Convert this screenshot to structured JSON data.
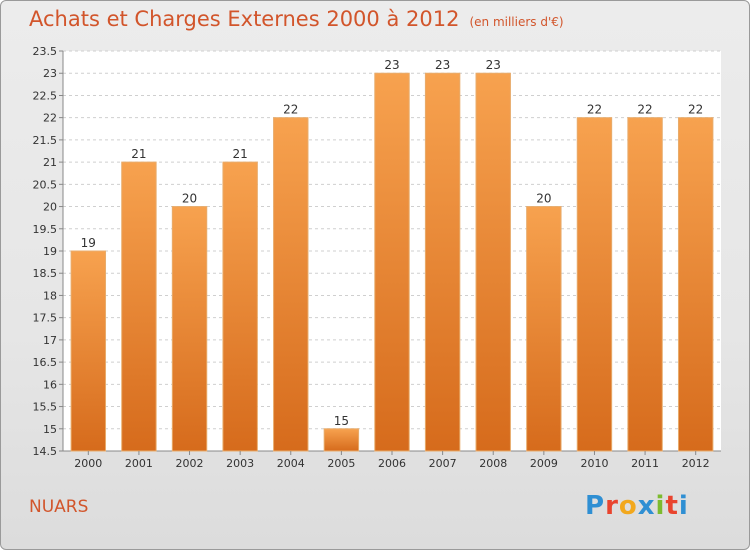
{
  "header": {
    "title": "Achats et Charges Externes 2000 à 2012",
    "subtitle": "(en milliers d'€)"
  },
  "footer": {
    "city": "NUARS",
    "logo_letters": [
      "P",
      "r",
      "o",
      "x",
      "i",
      "t",
      "i"
    ]
  },
  "colors": {
    "accent": "#d2552b",
    "bar_top": "#f7a24f",
    "bar_bottom": "#d66b1c",
    "logo": [
      "#2f8fd3",
      "#e9442e",
      "#f2a81d",
      "#2f8fd3",
      "#7dbb2f",
      "#e9442e",
      "#2f8fd3"
    ]
  },
  "chart_data": {
    "type": "bar",
    "title": "Achats et Charges Externes 2000 à 2012",
    "categories": [
      "2000",
      "2001",
      "2002",
      "2003",
      "2004",
      "2005",
      "2006",
      "2007",
      "2008",
      "2009",
      "2010",
      "2011",
      "2012"
    ],
    "values": [
      19,
      21,
      20,
      21,
      22,
      15,
      23,
      23,
      23,
      20,
      22,
      22,
      22
    ],
    "data_labels": [
      "19",
      "21",
      "20",
      "21",
      "22",
      "15",
      "23",
      "23",
      "23",
      "20",
      "22",
      "22",
      "22"
    ],
    "yticks": [
      "14.5",
      "15",
      "15.5",
      "16",
      "16.5",
      "17",
      "17.5",
      "18",
      "18.5",
      "19",
      "19.5",
      "20",
      "20.5",
      "21",
      "21.5",
      "22",
      "22.5",
      "23",
      "23.5"
    ],
    "ylim": [
      14.5,
      23.5
    ],
    "grid": true,
    "xlabel": "",
    "ylabel": ""
  }
}
